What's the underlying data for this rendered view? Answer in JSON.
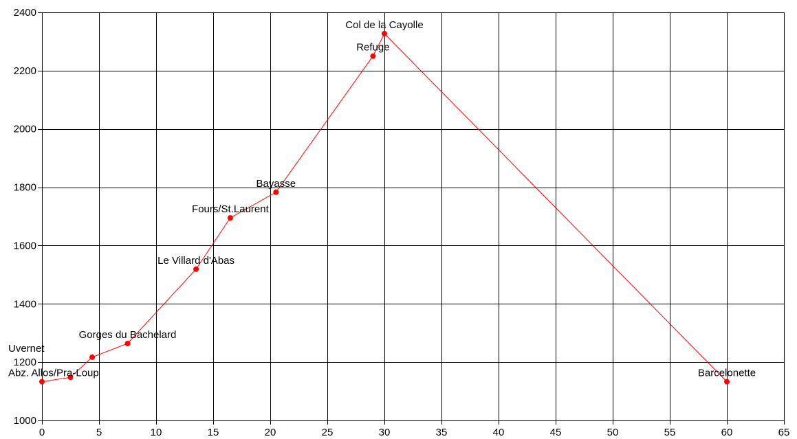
{
  "chart_data": {
    "type": "line",
    "title": "",
    "xlabel": "",
    "ylabel": "",
    "xlim": [
      0,
      65
    ],
    "ylim": [
      1000,
      2400
    ],
    "x_ticks": [
      0,
      5,
      10,
      15,
      20,
      25,
      30,
      35,
      40,
      45,
      50,
      55,
      60,
      65
    ],
    "y_ticks": [
      1000,
      1200,
      1400,
      1600,
      1800,
      2000,
      2200,
      2400
    ],
    "grid": true,
    "series": [
      {
        "color": "#ff0000",
        "points": [
          {
            "x": 0,
            "y": 1133,
            "label": "Abz. Allos/Pra-Loup"
          },
          {
            "x": 2.5,
            "y": 1148,
            "label": ""
          },
          {
            "x": 4.4,
            "y": 1217,
            "label": "Uvernet"
          },
          {
            "x": 7.5,
            "y": 1264,
            "label": "Gorges du Bachelard"
          },
          {
            "x": 13.5,
            "y": 1519,
            "label": "Le Villard d'Abas"
          },
          {
            "x": 16.5,
            "y": 1695,
            "label": "Fours/St.Laurent"
          },
          {
            "x": 20.5,
            "y": 1783,
            "label": "Bayasse"
          },
          {
            "x": 29,
            "y": 2250,
            "label": "Refuge"
          },
          {
            "x": 30,
            "y": 2327,
            "label": "Col de la Cayolle"
          },
          {
            "x": 60,
            "y": 1133,
            "label": "Barcelonette"
          }
        ]
      }
    ]
  }
}
